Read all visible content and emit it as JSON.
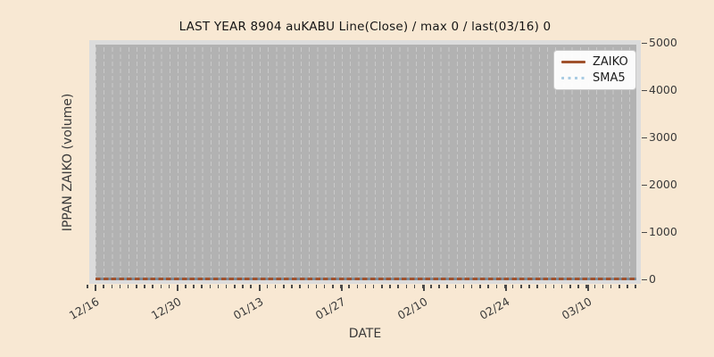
{
  "chart_data": {
    "type": "line",
    "title": "LAST YEAR 8904 auKABU Line(Close) / max 0 / last(03/16) 0",
    "xlabel": "DATE",
    "ylabel": "IPPAN ZAIKO (volume)",
    "x_major_ticks": [
      "12/16",
      "12/30",
      "01/13",
      "01/27",
      "02/10",
      "02/24",
      "03/10"
    ],
    "x_range": [
      "12/16",
      "03/16"
    ],
    "y_ticks": [
      0,
      1000,
      2000,
      3000,
      4000,
      5000
    ],
    "ylim": [
      0,
      5000
    ],
    "grid": "vertical dashed per trading day",
    "legend_position": "upper right",
    "max_value": 0,
    "last_date": "03/16",
    "last_value": 0,
    "series": [
      {
        "name": "ZAIKO",
        "line_style": "solid",
        "color": "#a0522d",
        "constant_value": 0
      },
      {
        "name": "SMA5",
        "line_style": "dotted",
        "color": "#a9cce3",
        "constant_value": 0
      }
    ],
    "legend": [
      {
        "label": "ZAIKO"
      },
      {
        "label": "SMA5"
      }
    ],
    "colors": {
      "figure_background": "#f8e8d3",
      "axes_margin": "#dcdcdc",
      "plot_background": "#b2b2b2",
      "gridline": "#c9c9c9",
      "zaiko_line": "#a0522d",
      "sma5_line": "#a9cce3",
      "tick_text": "#3a3a3a",
      "title_text": "#151515"
    }
  }
}
